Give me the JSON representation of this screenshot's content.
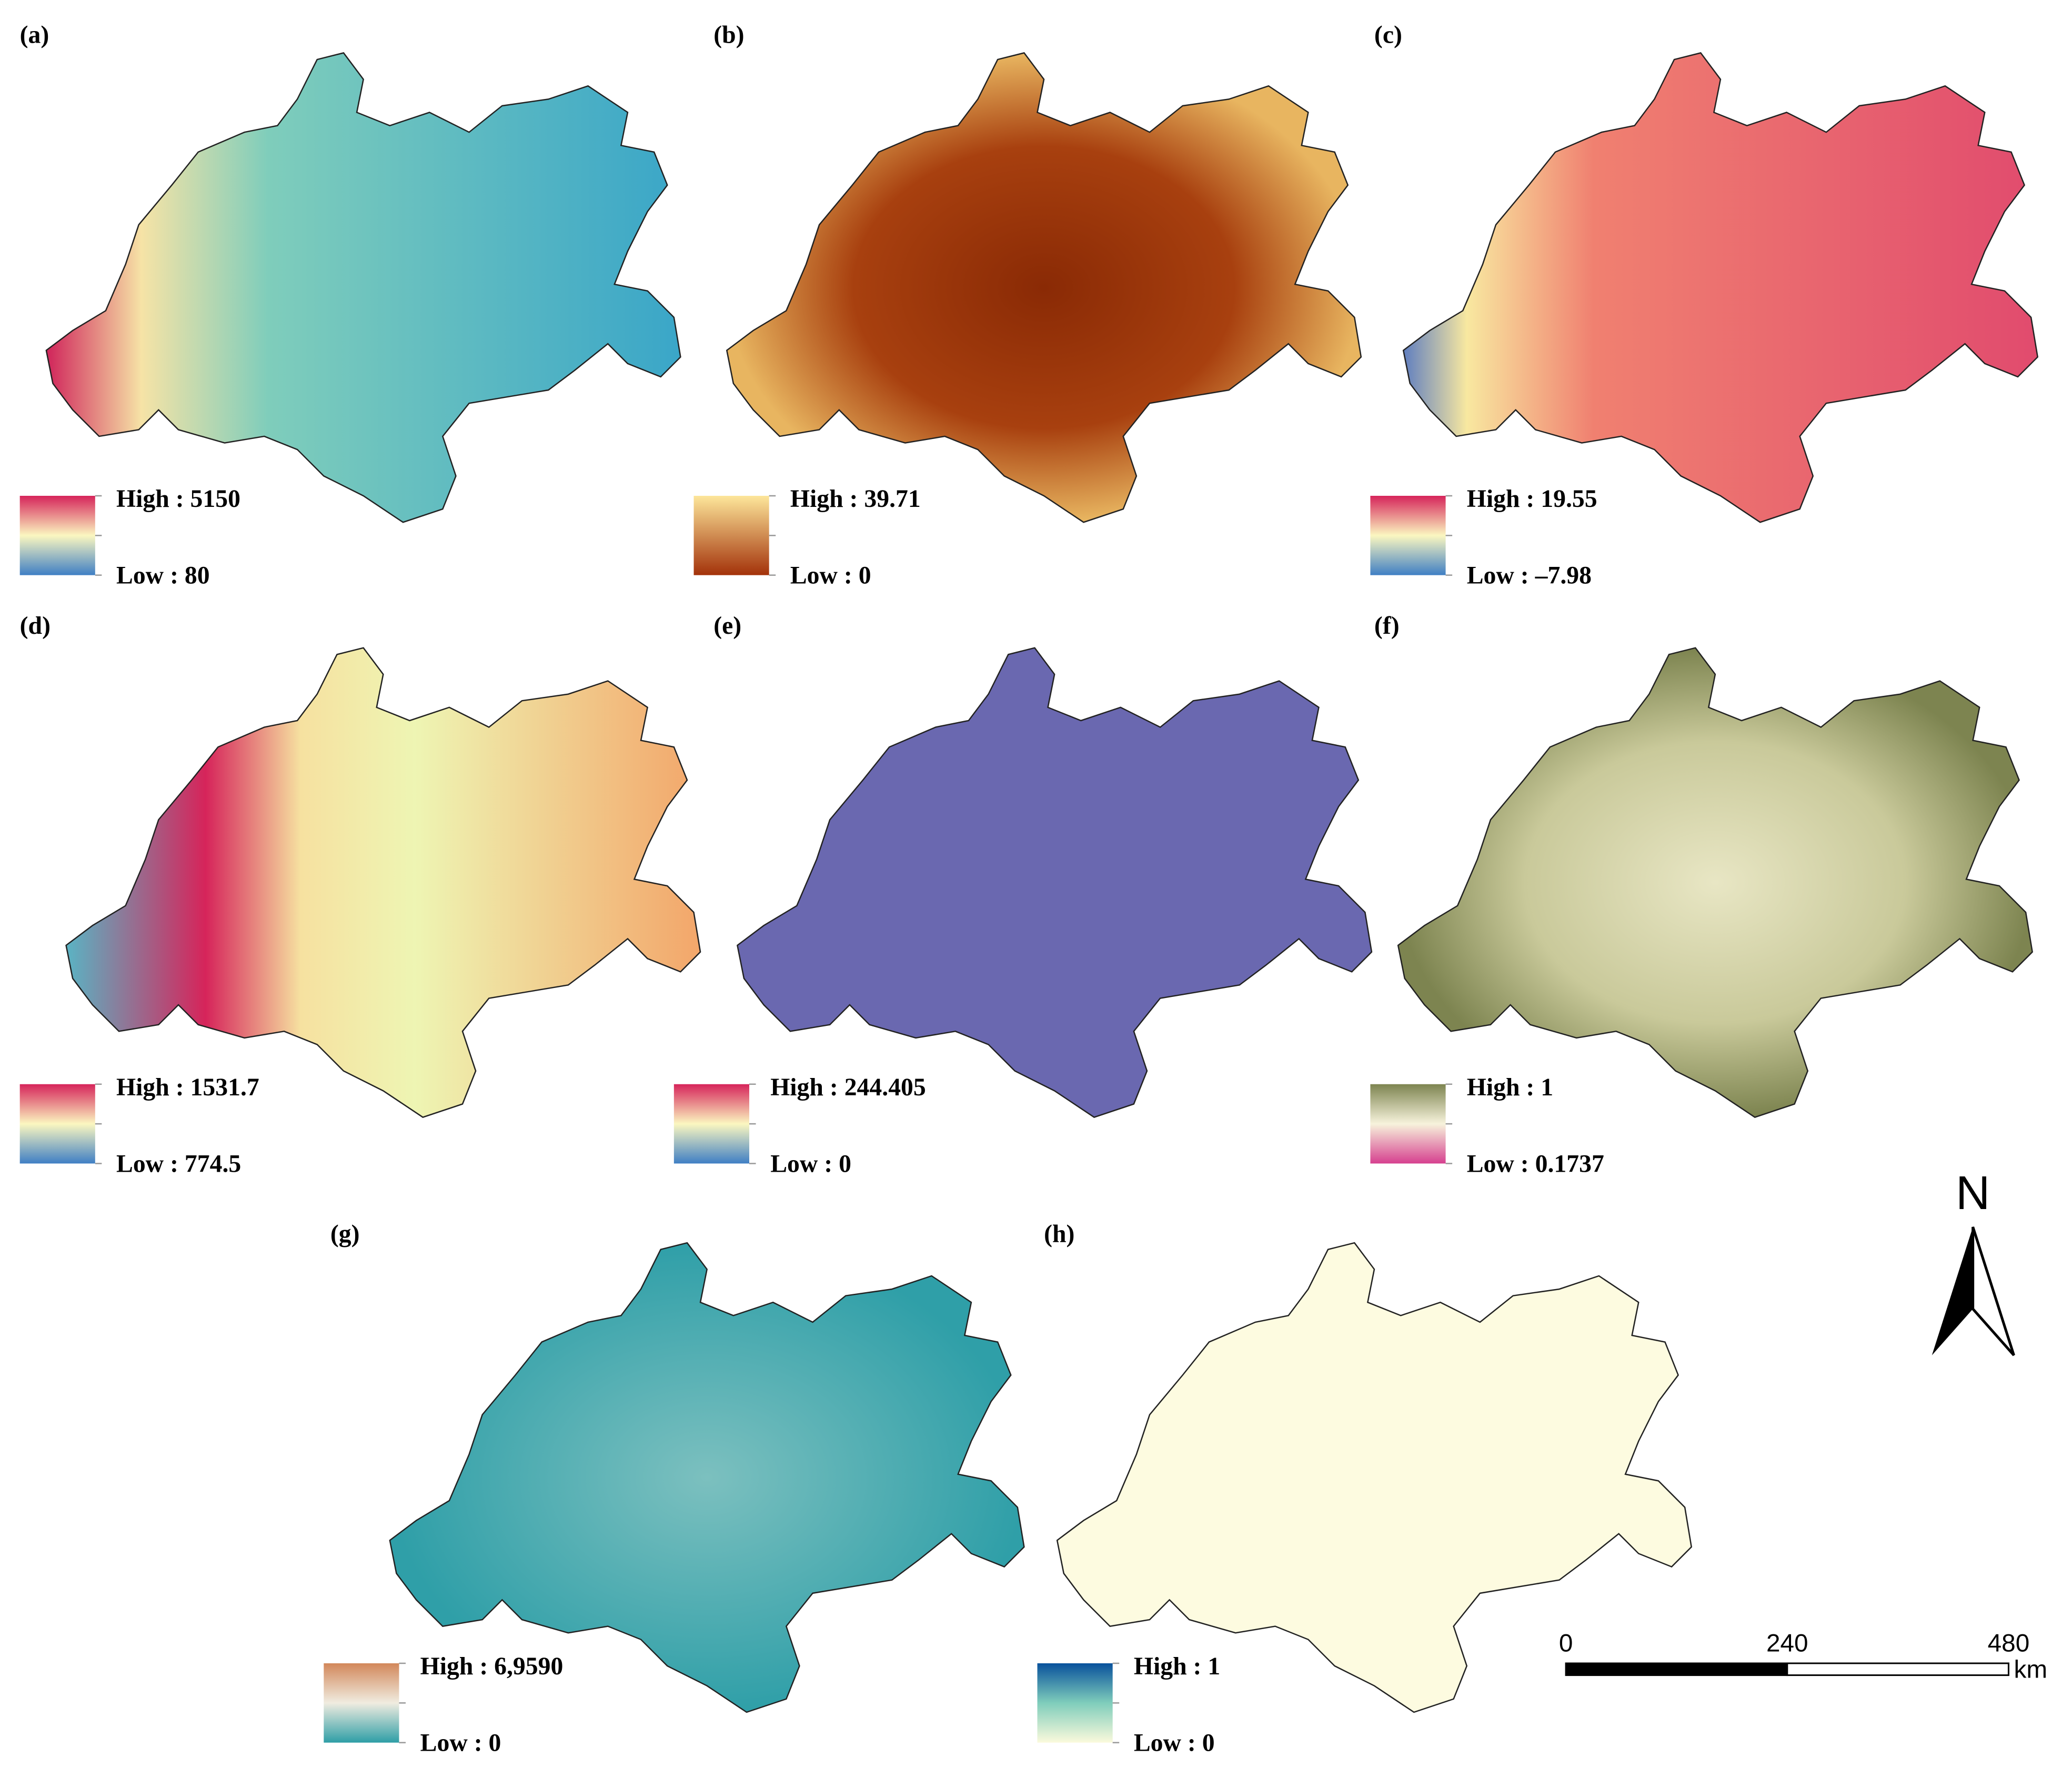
{
  "panels": [
    {
      "label": "(a)",
      "high": "High : 5150",
      "low": "Low : 80"
    },
    {
      "label": "(b)",
      "high": "High : 39.71",
      "low": "Low : 0"
    },
    {
      "label": "(c)",
      "high": "High : 19.55",
      "low": "Low : –7.98"
    },
    {
      "label": "(d)",
      "high": "High : 1531.7",
      "low": "Low : 774.5"
    },
    {
      "label": "(e)",
      "high": "High : 244.405",
      "low": "Low : 0"
    },
    {
      "label": "(f)",
      "high": "High : 1",
      "low": "Low : 0.1737"
    },
    {
      "label": "(g)",
      "high": "High : 6,9590",
      "low": "Low : 0"
    },
    {
      "label": "(h)",
      "high": "High : 1",
      "low": "Low : 0"
    }
  ],
  "north": "N",
  "scale_bar": {
    "ticks": [
      0,
      240,
      480
    ],
    "unit": "km"
  }
}
